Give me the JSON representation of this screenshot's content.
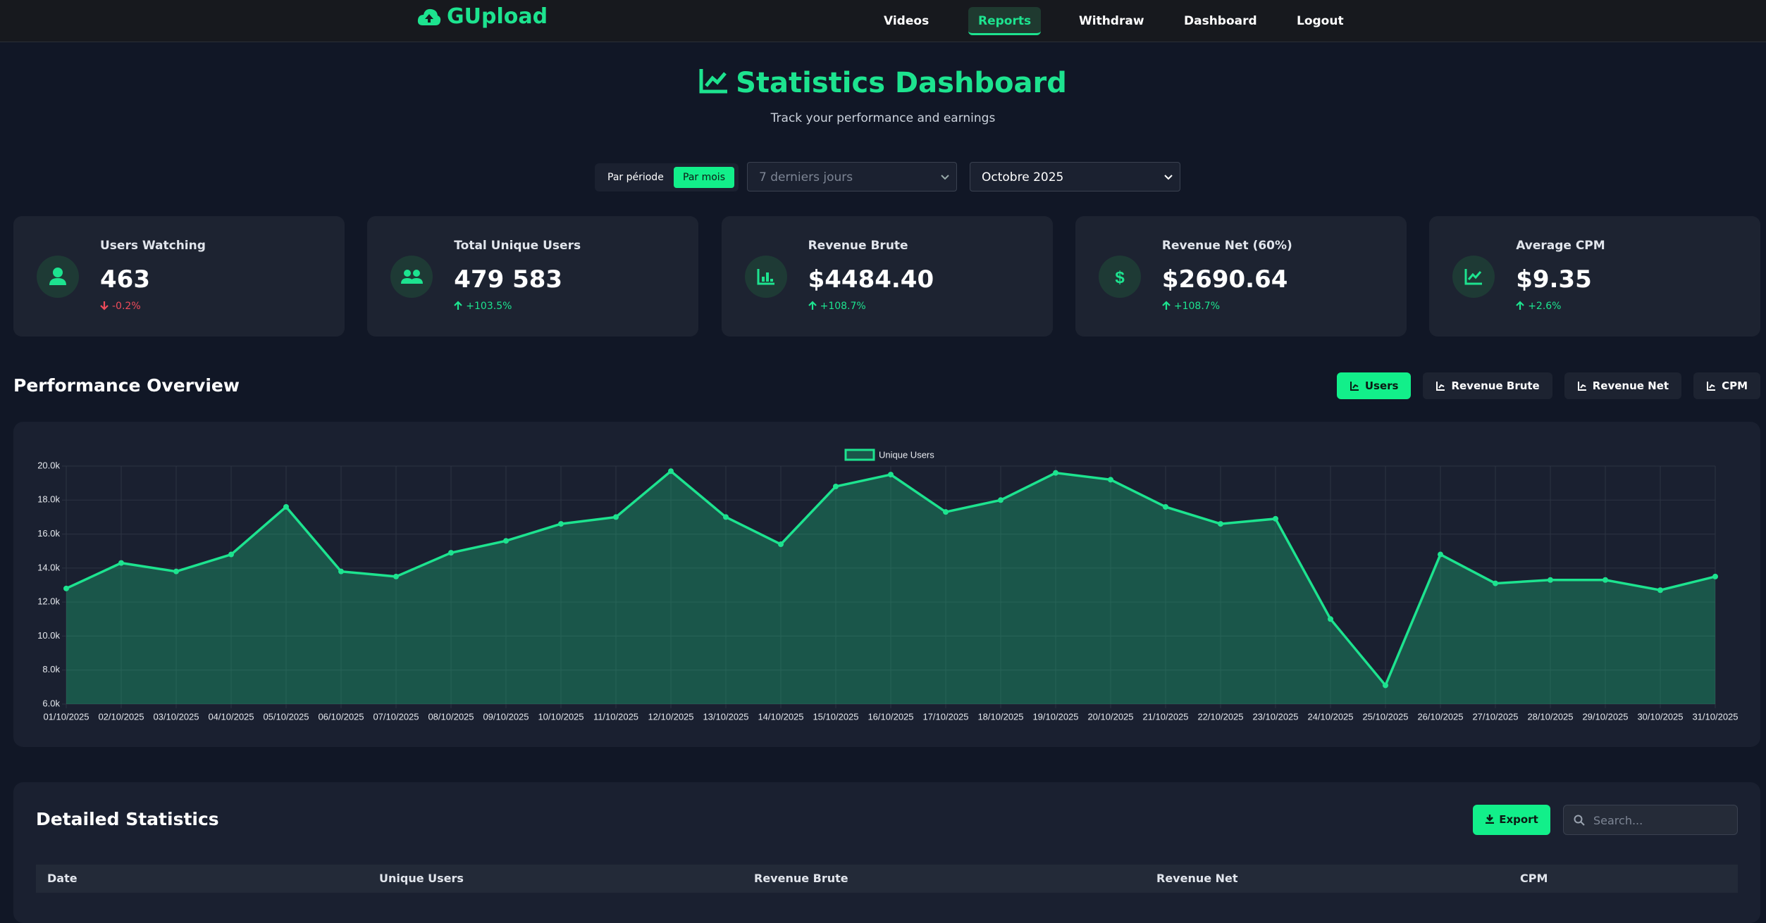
{
  "nav": {
    "brand": "GUpload",
    "items": [
      "Videos",
      "Reports",
      "Withdraw",
      "Dashboard",
      "Logout"
    ]
  },
  "header": {
    "title": "Statistics Dashboard",
    "subtitle": "Track your performance and earnings"
  },
  "filters": {
    "modes": [
      "Par période",
      "Par mois"
    ],
    "range": "7 derniers jours",
    "month": "Octobre 2025"
  },
  "cards": [
    {
      "label": "Users Watching",
      "value": "463",
      "change": "-0.2%"
    },
    {
      "label": "Total Unique Users",
      "value": "479 583",
      "change": "+103.5%"
    },
    {
      "label": "Revenue Brute",
      "value": "$4484.40",
      "change": "+108.7%"
    },
    {
      "label": "Revenue Net (60%)",
      "value": "$2690.64",
      "change": "+108.7%"
    },
    {
      "label": "Average CPM",
      "value": "$9.35",
      "change": "+2.6%"
    }
  ],
  "performance": {
    "title": "Performance Overview",
    "tabs": [
      "Users",
      "Revenue Brute",
      "Revenue Net",
      "CPM"
    ]
  },
  "chart_data": {
    "type": "line",
    "categories": [
      "01/10/2025",
      "02/10/2025",
      "03/10/2025",
      "04/10/2025",
      "05/10/2025",
      "06/10/2025",
      "07/10/2025",
      "08/10/2025",
      "09/10/2025",
      "10/10/2025",
      "11/10/2025",
      "12/10/2025",
      "13/10/2025",
      "14/10/2025",
      "15/10/2025",
      "16/10/2025",
      "17/10/2025",
      "18/10/2025",
      "19/10/2025",
      "20/10/2025",
      "21/10/2025",
      "22/10/2025",
      "23/10/2025",
      "24/10/2025",
      "25/10/2025",
      "26/10/2025",
      "27/10/2025",
      "28/10/2025",
      "29/10/2025",
      "30/10/2025",
      "31/10/2025"
    ],
    "series": [
      {
        "name": "Unique Users",
        "color": "#1de38f",
        "values": [
          12800,
          14300,
          13800,
          14800,
          17600,
          13800,
          13500,
          14900,
          15600,
          16600,
          17000,
          19700,
          17000,
          15400,
          18800,
          19500,
          17300,
          18000,
          19600,
          19200,
          17600,
          16600,
          16900,
          11000,
          7100,
          14800,
          13100,
          13300,
          13300,
          12700,
          13500
        ]
      }
    ],
    "ylim": [
      6000,
      20000
    ],
    "yticks": [
      {
        "value": 6000,
        "label": "6.0k"
      },
      {
        "value": 8000,
        "label": "8.0k"
      },
      {
        "value": 10000,
        "label": "10.0k"
      },
      {
        "value": 12000,
        "label": "12.0k"
      },
      {
        "value": 14000,
        "label": "14.0k"
      },
      {
        "value": 16000,
        "label": "16.0k"
      },
      {
        "value": 18000,
        "label": "18.0k"
      },
      {
        "value": 20000,
        "label": "20.0k"
      }
    ],
    "grid": true
  },
  "details": {
    "title": "Detailed Statistics",
    "export": "Export",
    "search": "Search...",
    "columns": [
      "Date",
      "Unique Users",
      "Revenue Brute",
      "Revenue Net",
      "CPM"
    ]
  }
}
